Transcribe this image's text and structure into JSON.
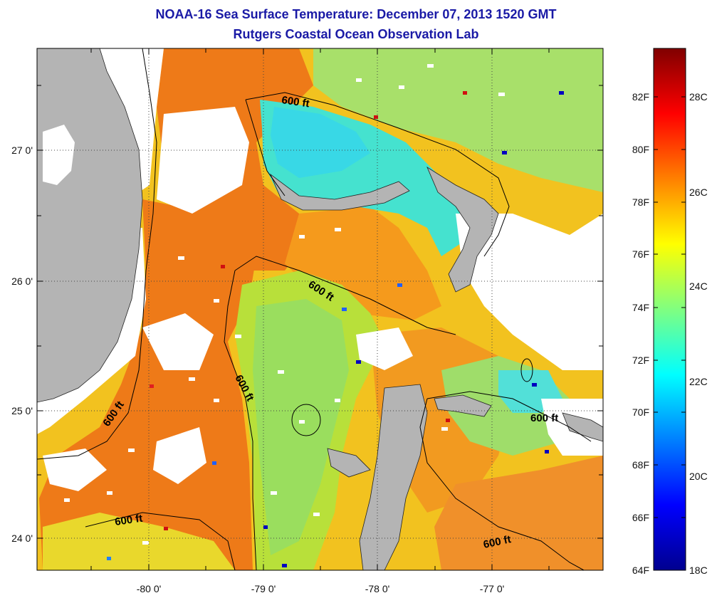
{
  "header": {
    "title_line1": "NOAA-16 Sea Surface Temperature:  December 07, 2013 1520 GMT",
    "title_line2": "Rutgers Coastal Ocean Observation Lab"
  },
  "map": {
    "lon_labels": [
      "-80 0'",
      "-79 0'",
      "-78 0'",
      "-77 0'"
    ],
    "lat_labels": [
      "27 0'",
      "26 0'",
      "25 0'",
      "24 0'"
    ],
    "contour_label": "600 ft",
    "colors": {
      "land": "#b4b4b4",
      "cloud": "#ffffff",
      "warm_orange": "#ee7a18",
      "orange": "#f59a1c",
      "yellow": "#f4d21e",
      "yellow_green": "#c8e033",
      "green": "#8fe07a",
      "cyan": "#3fe6cf",
      "light_cyan": "#58e8e0"
    }
  },
  "colorbar": {
    "f_labels": [
      "82F",
      "80F",
      "78F",
      "76F",
      "74F",
      "72F",
      "70F",
      "68F",
      "66F",
      "64F"
    ],
    "c_labels": [
      "28C",
      "26C",
      "24C",
      "22C",
      "20C",
      "18C"
    ],
    "stops": [
      "#00008f",
      "#0000ff",
      "#0080ff",
      "#00ffff",
      "#80ff80",
      "#ffff00",
      "#ff8000",
      "#ff0000",
      "#800000"
    ]
  }
}
